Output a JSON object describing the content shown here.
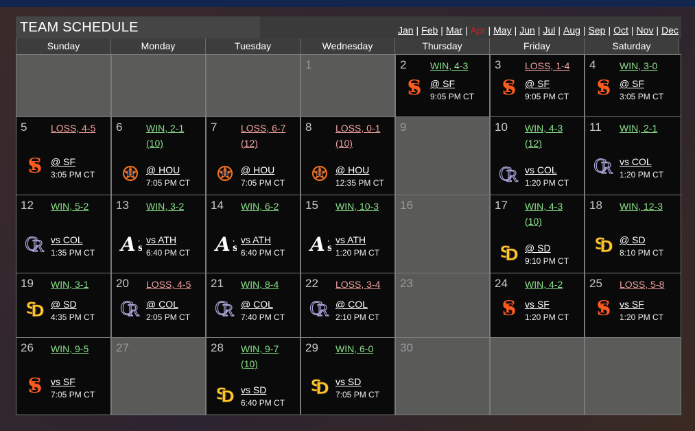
{
  "title": "TEAM SCHEDULE",
  "months": [
    "Jan",
    "Feb",
    "Mar",
    "Apr",
    "May",
    "Jun",
    "Jul",
    "Aug",
    "Sep",
    "Oct",
    "Nov",
    "Dec"
  ],
  "current_month": "Apr",
  "weekdays": [
    "Sunday",
    "Monday",
    "Tuesday",
    "Wednesday",
    "Thursday",
    "Friday",
    "Saturday"
  ],
  "colors": {
    "win": "#8be08b",
    "loss": "#f1a0a0",
    "current_month": "#d01f1f",
    "game_bg": "#0a0a0a",
    "off_bg": "#5a5a59"
  },
  "weeks": [
    [
      {
        "empty": true
      },
      {
        "empty": true
      },
      {
        "empty": true
      },
      {
        "day": "1"
      },
      {
        "day": "2",
        "result": "WIN, 4-3",
        "wl": "win",
        "opp": "@ SF",
        "time": "9:05 PM CT",
        "logo": "giants-logo-icon"
      },
      {
        "day": "3",
        "result": "LOSS, 1-4",
        "wl": "loss",
        "opp": "@ SF",
        "time": "9:05 PM CT",
        "logo": "giants-logo-icon"
      },
      {
        "day": "4",
        "result": "WIN, 3-0",
        "wl": "win",
        "opp": "@ SF",
        "time": "3:05 PM CT",
        "logo": "giants-logo-icon"
      }
    ],
    [
      {
        "day": "5",
        "result": "LOSS, 4-5",
        "wl": "loss",
        "opp": "@ SF",
        "time": "3:05 PM CT",
        "logo": "giants-logo-icon"
      },
      {
        "day": "6",
        "result": "WIN, 2-1",
        "extra": "(10)",
        "wl": "win",
        "opp": "@ HOU",
        "time": "7:05 PM CT",
        "logo": "astros-logo-icon"
      },
      {
        "day": "7",
        "result": "LOSS, 6-7",
        "extra": "(12)",
        "wl": "loss",
        "opp": "@ HOU",
        "time": "7:05 PM CT",
        "logo": "astros-logo-icon"
      },
      {
        "day": "8",
        "result": "LOSS, 0-1",
        "extra": "(10)",
        "wl": "loss",
        "opp": "@ HOU",
        "time": "12:35 PM CT",
        "logo": "astros-logo-icon"
      },
      {
        "day": "9"
      },
      {
        "day": "10",
        "result": "WIN, 4-3",
        "extra": "(12)",
        "wl": "win",
        "opp": "vs COL",
        "time": "1:20 PM CT",
        "logo": "rockies-logo-icon"
      },
      {
        "day": "11",
        "result": "WIN, 2-1",
        "wl": "win",
        "opp": "vs COL",
        "time": "1:20 PM CT",
        "logo": "rockies-logo-icon"
      }
    ],
    [
      {
        "day": "12",
        "result": "WIN, 5-2",
        "wl": "win",
        "opp": "vs COL",
        "time": "1:35 PM CT",
        "logo": "rockies-logo-icon"
      },
      {
        "day": "13",
        "result": "WIN, 3-2",
        "wl": "win",
        "opp": "vs ATH",
        "time": "6:40 PM CT",
        "logo": "athletics-logo-icon"
      },
      {
        "day": "14",
        "result": "WIN, 6-2",
        "wl": "win",
        "opp": "vs ATH",
        "time": "6:40 PM CT",
        "logo": "athletics-logo-icon"
      },
      {
        "day": "15",
        "result": "WIN, 10-3",
        "wl": "win",
        "opp": "vs ATH",
        "time": "1:20 PM CT",
        "logo": "athletics-logo-icon"
      },
      {
        "day": "16"
      },
      {
        "day": "17",
        "result": "WIN, 4-3",
        "extra": "(10)",
        "wl": "win",
        "opp": "@ SD",
        "time": "9:10 PM CT",
        "logo": "padres-logo-icon"
      },
      {
        "day": "18",
        "result": "WIN, 12-3",
        "wl": "win",
        "opp": "@ SD",
        "time": "8:10 PM CT",
        "logo": "padres-logo-icon"
      }
    ],
    [
      {
        "day": "19",
        "result": "WIN, 3-1",
        "wl": "win",
        "opp": "@ SD",
        "time": "4:35 PM CT",
        "logo": "padres-logo-icon"
      },
      {
        "day": "20",
        "result": "LOSS, 4-5",
        "wl": "loss",
        "opp": "@ COL",
        "time": "2:05 PM CT",
        "logo": "rockies-logo-icon"
      },
      {
        "day": "21",
        "result": "WIN, 8-4",
        "wl": "win",
        "opp": "@ COL",
        "time": "7:40 PM CT",
        "logo": "rockies-logo-icon"
      },
      {
        "day": "22",
        "result": "LOSS, 3-4",
        "wl": "loss",
        "opp": "@ COL",
        "time": "2:10 PM CT",
        "logo": "rockies-logo-icon"
      },
      {
        "day": "23"
      },
      {
        "day": "24",
        "result": "WIN, 4-2",
        "wl": "win",
        "opp": "vs SF",
        "time": "1:20 PM CT",
        "logo": "giants-logo-icon"
      },
      {
        "day": "25",
        "result": "LOSS, 5-8",
        "wl": "loss",
        "opp": "vs SF",
        "time": "1:20 PM CT",
        "logo": "giants-logo-icon"
      }
    ],
    [
      {
        "day": "26",
        "result": "WIN, 9-5",
        "wl": "win",
        "opp": "vs SF",
        "time": "7:05 PM CT",
        "logo": "giants-logo-icon"
      },
      {
        "day": "27"
      },
      {
        "day": "28",
        "result": "WIN, 9-7",
        "extra": "(10)",
        "wl": "win",
        "opp": "vs SD",
        "time": "6:40 PM CT",
        "logo": "padres-logo-icon"
      },
      {
        "day": "29",
        "result": "WIN, 6-0",
        "wl": "win",
        "opp": "vs SD",
        "time": "7:05 PM CT",
        "logo": "padres-logo-icon"
      },
      {
        "day": "30"
      },
      {
        "empty": true
      },
      {
        "empty": true
      }
    ]
  ]
}
